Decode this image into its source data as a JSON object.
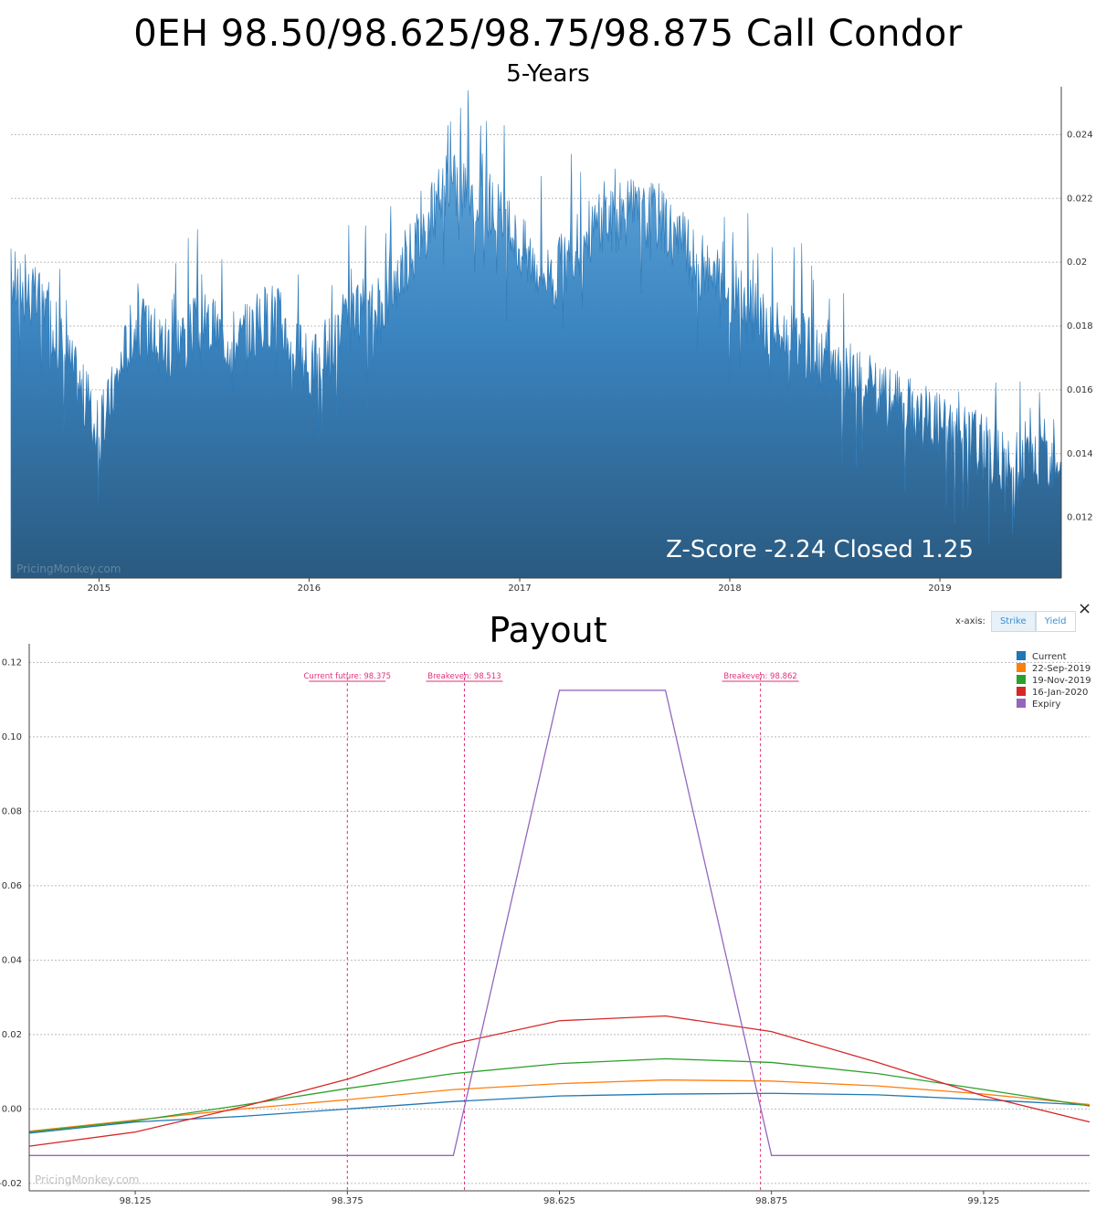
{
  "title": "0EH 98.50/98.625/98.75/98.875 Call Condor",
  "subtitle": "5-Years",
  "payout_title": "Payout",
  "zscore_label": "Z-Score -2.24 Closed 1.25",
  "watermark": "PricingMonkey.com",
  "xaxis_control": {
    "label": "x-axis:",
    "options": [
      "Strike",
      "Yield"
    ],
    "selected": "Strike"
  },
  "close_label": "×",
  "colors": {
    "history": "#3a7fb8",
    "current": "#1f77b4",
    "sep": "#ff7f0e",
    "nov": "#2ca02c",
    "jan": "#d62728",
    "expiry": "#9467bd",
    "annotation": "#e0317a"
  },
  "chart_data": [
    {
      "type": "area",
      "title": "0EH 98.50/98.625/98.75/98.875 Call Condor",
      "subtitle": "5-Years",
      "x_ticks": [
        "2015",
        "2016",
        "2017",
        "2018",
        "2019"
      ],
      "x_range": [
        "2014-08-01",
        "2019-07-31"
      ],
      "y_ticks": [
        "0.012",
        "0.014",
        "0.016",
        "0.018",
        "0.02",
        "0.022",
        "0.024"
      ],
      "ylim": [
        0.0101,
        0.0255
      ],
      "grid": true,
      "series": [
        {
          "values_approx": [
            [
              "2014-08",
              0.0195
            ],
            [
              "2014-10",
              0.0185
            ],
            [
              "2014-12",
              0.016
            ],
            [
              "2015-01",
              0.0145
            ],
            [
              "2015-03",
              0.018
            ],
            [
              "2015-05",
              0.0175
            ],
            [
              "2015-07",
              0.018
            ],
            [
              "2015-09",
              0.0175
            ],
            [
              "2015-11",
              0.0185
            ],
            [
              "2016-01",
              0.0165
            ],
            [
              "2016-03",
              0.018
            ],
            [
              "2016-05",
              0.0185
            ],
            [
              "2016-07",
              0.0205
            ],
            [
              "2016-09",
              0.0225
            ],
            [
              "2016-11",
              0.022
            ],
            [
              "2017-01",
              0.0205
            ],
            [
              "2017-03",
              0.0195
            ],
            [
              "2017-05",
              0.021
            ],
            [
              "2017-07",
              0.0215
            ],
            [
              "2017-09",
              0.0215
            ],
            [
              "2017-11",
              0.02
            ],
            [
              "2018-01",
              0.019
            ],
            [
              "2018-03",
              0.018
            ],
            [
              "2018-05",
              0.0175
            ],
            [
              "2018-07",
              0.0165
            ],
            [
              "2018-09",
              0.016
            ],
            [
              "2018-11",
              0.0155
            ],
            [
              "2019-01",
              0.015
            ],
            [
              "2019-03",
              0.0145
            ],
            [
              "2019-05",
              0.0135
            ],
            [
              "2019-07",
              0.014
            ]
          ]
        }
      ]
    },
    {
      "type": "line",
      "title": "Payout",
      "x_ticks": [
        "98.125",
        "98.375",
        "98.625",
        "98.875",
        "99.125"
      ],
      "xlim": [
        98.0,
        99.25
      ],
      "y_ticks": [
        "-0.02",
        "0.00",
        "0.02",
        "0.04",
        "0.06",
        "0.08",
        "0.10",
        "0.12"
      ],
      "ylim": [
        -0.022,
        0.125
      ],
      "grid": true,
      "legend_position": "top-right",
      "annotations": [
        {
          "label": "Current future: 98.375",
          "x": 98.375
        },
        {
          "label": "Breakeven: 98.513",
          "x": 98.513
        },
        {
          "label": "Breakeven: 98.862",
          "x": 98.862
        }
      ],
      "series": [
        {
          "name": "Current",
          "color": "#1f77b4",
          "points": [
            [
              98.0,
              -0.0065
            ],
            [
              98.125,
              -0.0035
            ],
            [
              98.25,
              -0.002
            ],
            [
              98.375,
              0.0
            ],
            [
              98.5,
              0.002
            ],
            [
              98.625,
              0.0035
            ],
            [
              98.75,
              0.004
            ],
            [
              98.875,
              0.0042
            ],
            [
              99.0,
              0.0038
            ],
            [
              99.125,
              0.0025
            ],
            [
              99.25,
              0.001
            ]
          ]
        },
        {
          "name": "22-Sep-2019",
          "color": "#ff7f0e",
          "points": [
            [
              98.0,
              -0.006
            ],
            [
              98.125,
              -0.003
            ],
            [
              98.25,
              0.0
            ],
            [
              98.375,
              0.0025
            ],
            [
              98.5,
              0.0052
            ],
            [
              98.625,
              0.0068
            ],
            [
              98.75,
              0.0078
            ],
            [
              98.875,
              0.0075
            ],
            [
              99.0,
              0.0062
            ],
            [
              99.125,
              0.004
            ],
            [
              99.25,
              0.0012
            ]
          ]
        },
        {
          "name": "19-Nov-2019",
          "color": "#2ca02c",
          "points": [
            [
              98.0,
              -0.0062
            ],
            [
              98.125,
              -0.0032
            ],
            [
              98.25,
              0.001
            ],
            [
              98.375,
              0.0055
            ],
            [
              98.5,
              0.0095
            ],
            [
              98.625,
              0.0122
            ],
            [
              98.75,
              0.0135
            ],
            [
              98.875,
              0.0125
            ],
            [
              99.0,
              0.0095
            ],
            [
              99.125,
              0.0052
            ],
            [
              99.25,
              0.0008
            ]
          ]
        },
        {
          "name": "16-Jan-2020",
          "color": "#d62728",
          "points": [
            [
              98.0,
              -0.01
            ],
            [
              98.125,
              -0.0062
            ],
            [
              98.25,
              0.0005
            ],
            [
              98.375,
              0.008
            ],
            [
              98.5,
              0.0175
            ],
            [
              98.625,
              0.0237
            ],
            [
              98.75,
              0.025
            ],
            [
              98.875,
              0.0208
            ],
            [
              99.0,
              0.0125
            ],
            [
              99.125,
              0.0035
            ],
            [
              99.25,
              -0.0035
            ]
          ]
        },
        {
          "name": "Expiry",
          "color": "#9467bd",
          "points": [
            [
              98.0,
              -0.0125
            ],
            [
              98.5,
              -0.0125
            ],
            [
              98.625,
              0.1125
            ],
            [
              98.75,
              0.1125
            ],
            [
              98.875,
              -0.0125
            ],
            [
              99.25,
              -0.0125
            ]
          ]
        }
      ]
    }
  ]
}
